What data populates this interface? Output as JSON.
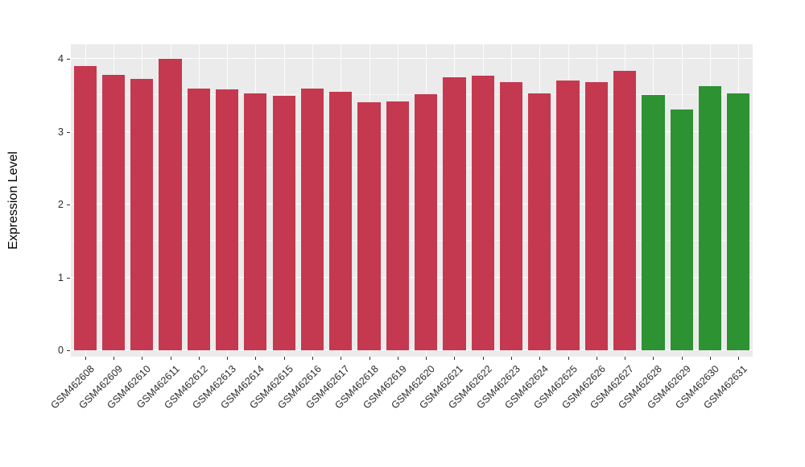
{
  "chart_data": {
    "type": "bar",
    "title": "",
    "xlabel": "",
    "ylabel": "Expression Level",
    "ylim": [
      0,
      4
    ],
    "yticks": [
      0,
      1,
      2,
      3,
      4
    ],
    "grid": true,
    "panel_bg": "#EBEBEB",
    "legend_position": "none",
    "categories": [
      "GSM462608",
      "GSM462609",
      "GSM462610",
      "GSM462611",
      "GSM462612",
      "GSM462613",
      "GSM462614",
      "GSM462615",
      "GSM462616",
      "GSM462617",
      "GSM462618",
      "GSM462619",
      "GSM462620",
      "GSM462621",
      "GSM462622",
      "GSM462623",
      "GSM462624",
      "GSM462625",
      "GSM462626",
      "GSM462627",
      "GSM462628",
      "GSM462629",
      "GSM462630",
      "GSM462631"
    ],
    "values": [
      3.9,
      3.78,
      3.72,
      4.0,
      3.59,
      3.58,
      3.52,
      3.49,
      3.59,
      3.55,
      3.4,
      3.41,
      3.51,
      3.75,
      3.77,
      3.68,
      3.52,
      3.7,
      3.68,
      3.83,
      3.5,
      3.3,
      3.63,
      3.52
    ],
    "colors": [
      "#C4394F",
      "#C4394F",
      "#C4394F",
      "#C4394F",
      "#C4394F",
      "#C4394F",
      "#C4394F",
      "#C4394F",
      "#C4394F",
      "#C4394F",
      "#C4394F",
      "#C4394F",
      "#C4394F",
      "#C4394F",
      "#C4394F",
      "#C4394F",
      "#C4394F",
      "#C4394F",
      "#C4394F",
      "#C4394F",
      "#2C9232",
      "#2C9232",
      "#2C9232",
      "#2C9232"
    ],
    "color_legend": {
      "group1": "#C4394F",
      "group2": "#2C9232"
    }
  }
}
